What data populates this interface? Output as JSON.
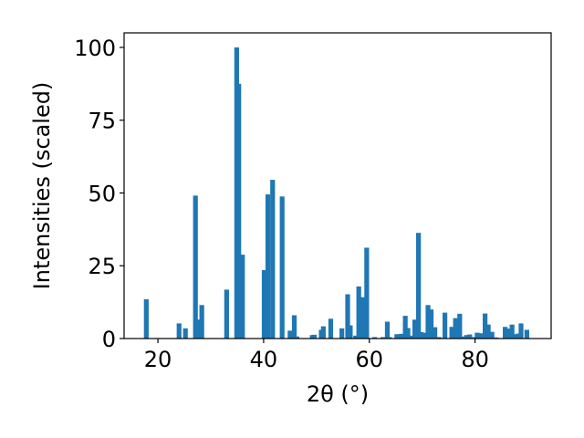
{
  "chart_data": {
    "type": "bar",
    "title": "",
    "xlabel": "2θ (°)",
    "ylabel": "Intensities (scaled)",
    "xlim": [
      13.6,
      94.4
    ],
    "ylim": [
      0,
      105
    ],
    "xticks": [
      20,
      40,
      60,
      80
    ],
    "yticks": [
      0,
      25,
      50,
      75,
      100
    ],
    "grid": false,
    "legend": "none",
    "bar_width": 0.9,
    "bar_color": "#1f77b4",
    "series": [
      {
        "x": [
          17.8,
          24.0,
          25.2,
          27.1,
          27.5,
          28.3,
          33.0,
          34.9,
          35.3,
          36.0,
          40.1,
          40.8,
          41.7,
          43.5,
          45.0,
          45.8,
          46.3,
          49.2,
          49.6,
          50.9,
          51.3,
          52.7,
          54.8,
          55.9,
          56.4,
          57.4,
          58.0,
          58.8,
          59.5,
          61.0,
          62.6,
          63.4,
          63.8,
          65.2,
          66.0,
          66.8,
          67.3,
          68.0,
          68.6,
          69.3,
          69.8,
          70.5,
          71.1,
          71.7,
          72.4,
          73.2,
          74.3,
          75.6,
          76.3,
          77.1,
          77.8,
          78.4,
          79.0,
          79.6,
          80.4,
          81.0,
          81.9,
          82.5,
          83.2,
          84.0,
          85.7,
          86.3,
          87.0,
          87.6,
          88.2,
          88.7,
          89.8
        ],
        "values": [
          13.5,
          5.2,
          3.5,
          49.1,
          6.5,
          11.5,
          16.8,
          100.0,
          87.5,
          28.8,
          23.5,
          49.5,
          54.5,
          48.8,
          2.7,
          8.0,
          0.7,
          1.2,
          1.3,
          3.0,
          4.2,
          6.8,
          3.5,
          15.2,
          4.5,
          1.0,
          17.9,
          14.2,
          31.2,
          0.5,
          0.5,
          5.8,
          0.5,
          1.5,
          1.6,
          7.8,
          3.6,
          1.0,
          6.5,
          36.3,
          2.2,
          2.0,
          11.5,
          10.0,
          3.9,
          0.5,
          8.9,
          4.0,
          7.0,
          8.5,
          0.7,
          1.2,
          1.4,
          0.5,
          2.0,
          1.8,
          8.6,
          4.8,
          2.3,
          0.4,
          4.0,
          3.4,
          4.8,
          1.5,
          1.7,
          5.2,
          3.0
        ]
      }
    ]
  }
}
